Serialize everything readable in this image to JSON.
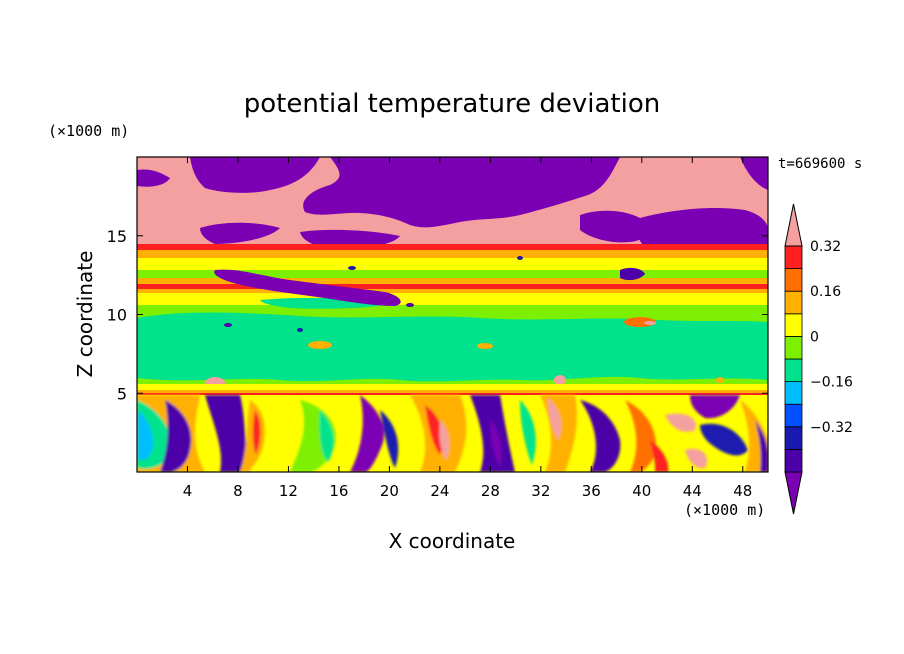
{
  "chart_data": {
    "type": "heatmap",
    "title": "potential temperature deviation",
    "xlabel": "X coordinate",
    "ylabel": "Z coordinate",
    "x_unit": "(×1000 m)",
    "y_unit": "(×1000 m)",
    "time_label": "t=669600 s",
    "xlim": [
      0,
      50
    ],
    "ylim": [
      0,
      20
    ],
    "x_ticks": [
      4,
      8,
      12,
      16,
      20,
      24,
      28,
      32,
      36,
      40,
      44,
      48
    ],
    "y_ticks": [
      5,
      10,
      15
    ],
    "colorbar": {
      "levels": [
        -0.48,
        -0.4,
        -0.32,
        -0.24,
        -0.16,
        -0.08,
        0,
        0.08,
        0.16,
        0.24,
        0.32,
        0.4,
        0.48
      ],
      "labels": [
        "0.32",
        "0.16",
        "0",
        "−0.16",
        "−0.32"
      ],
      "colors": [
        "#7b00b4",
        "#4b00a8",
        "#1a1ab0",
        "#0050ff",
        "#00bfff",
        "#00e38c",
        "#7cf000",
        "#ffff00",
        "#ffb000",
        "#ff7000",
        "#ff2020",
        "#f4a0a0"
      ]
    },
    "regions": [
      {
        "z": [
          16.5,
          20
        ],
        "description_level": "mixed",
        "dominant": [
          0.48,
          -0.48
        ]
      },
      {
        "z": [
          12.5,
          16.5
        ],
        "dominant": [
          0.48,
          -0.48
        ]
      },
      {
        "z": [
          12,
          12.5
        ],
        "dominant": [
          0.32
        ]
      },
      {
        "z": [
          11,
          12
        ],
        "dominant": [
          0.16,
          0.32
        ]
      },
      {
        "z": [
          5.2,
          11
        ],
        "dominant": [
          0,
          0.08
        ]
      },
      {
        "z": [
          5,
          5.2
        ],
        "dominant": [
          0.32,
          -0.32
        ]
      },
      {
        "z": [
          0,
          5
        ],
        "dominant": [
          -0.48,
          0.48
        ]
      }
    ]
  }
}
